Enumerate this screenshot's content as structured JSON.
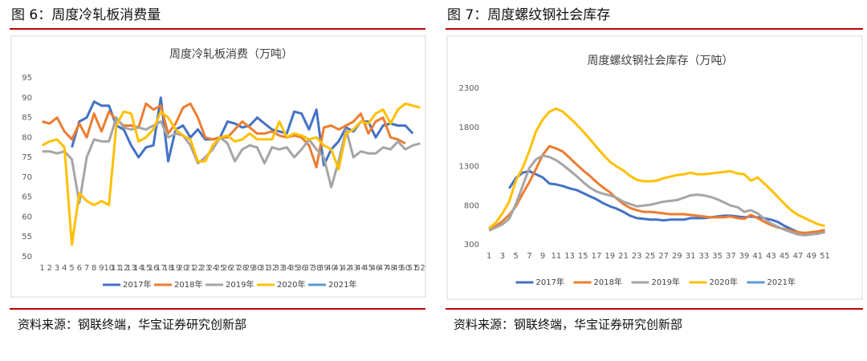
{
  "chart_data": [
    {
      "type": "line",
      "figure_title": "图 6：周度冷轧板消费量",
      "title": "周度冷轧板消费（万吨）",
      "source": "资料来源：钢联终端，华宝证券研究创新部",
      "categories": [
        "1",
        "2",
        "3",
        "4",
        "5",
        "6",
        "7",
        "8",
        "9",
        "10",
        "11",
        "12",
        "13",
        "14",
        "15",
        "16",
        "17",
        "18",
        "19",
        "20",
        "21",
        "22",
        "23",
        "24",
        "25",
        "26",
        "27",
        "28",
        "29",
        "30",
        "31",
        "32",
        "33",
        "34",
        "35",
        "36",
        "37",
        "38",
        "39",
        "40",
        "41",
        "42",
        "43",
        "44",
        "45",
        "46",
        "47",
        "48",
        "49",
        "50",
        "51",
        "52"
      ],
      "ylim": [
        50,
        95
      ],
      "yticks": [
        50,
        55,
        60,
        65,
        70,
        75,
        80,
        85,
        90,
        95
      ],
      "grid": false,
      "legend": "bottom",
      "series": [
        {
          "name": "2017年",
          "color": "#4472c4",
          "values": [
            null,
            null,
            null,
            null,
            77.5,
            84,
            85,
            89,
            88,
            88,
            83,
            82,
            78,
            75,
            77.5,
            78,
            90,
            74,
            82,
            83,
            80,
            82,
            79.5,
            79.5,
            80,
            84,
            83.5,
            82.5,
            83,
            85,
            83.5,
            82,
            81.5,
            81,
            86.5,
            86,
            82,
            87,
            73,
            77,
            79,
            82.5,
            81.5,
            84,
            84,
            80,
            83,
            83.5,
            83,
            83,
            81,
            null
          ]
        },
        {
          "name": "2018年",
          "color": "#ed7d31",
          "values": [
            84,
            83.5,
            85,
            81.5,
            79.5,
            83.5,
            80,
            86,
            81.5,
            86.5,
            84.5,
            83,
            83,
            82.5,
            88.5,
            87,
            88,
            81,
            83.5,
            87.5,
            88.5,
            85,
            80,
            79.5,
            80,
            80,
            82,
            84,
            82.5,
            81,
            81,
            81.5,
            80.5,
            80,
            80.5,
            80,
            78,
            72.5,
            82.5,
            83,
            82,
            83,
            84,
            86,
            81,
            84,
            85,
            80,
            79.5,
            78.5,
            null,
            null
          ]
        },
        {
          "name": "2019年",
          "color": "#a5a5a5",
          "values": [
            76.5,
            76.5,
            76,
            76.5,
            74.5,
            63.5,
            75,
            79.5,
            79,
            79,
            85,
            82.5,
            82,
            82.5,
            82,
            83,
            84,
            80,
            81,
            80.5,
            78,
            73.5,
            75,
            77,
            80,
            78.5,
            74,
            77,
            78,
            77.5,
            73.5,
            77.5,
            77,
            77.5,
            75,
            77,
            79.5,
            77,
            75,
            67.5,
            74,
            82,
            75,
            76.5,
            76,
            76,
            77.5,
            77,
            79,
            77,
            78,
            78.5
          ]
        },
        {
          "name": "2020年",
          "color": "#ffc000",
          "values": [
            78,
            79,
            79.5,
            77.5,
            53,
            66,
            64,
            63,
            64,
            63,
            83,
            86.5,
            86,
            79,
            80,
            82,
            86.5,
            85,
            82,
            80.5,
            79.5,
            74,
            74,
            78,
            80,
            80.5,
            79,
            79.5,
            81,
            79.5,
            79.5,
            79.5,
            84,
            80,
            81,
            80.5,
            79.5,
            80,
            78,
            77,
            72,
            81,
            82,
            84,
            83.5,
            86,
            87,
            83.5,
            87,
            88.5,
            88,
            87.5
          ]
        },
        {
          "name": "2021年",
          "color": "#5b9bd5",
          "values": [
            null,
            null,
            null,
            null,
            null,
            null,
            null,
            null,
            null,
            null,
            null,
            null,
            null,
            null,
            null,
            null,
            null,
            null,
            null,
            null,
            null,
            null,
            null,
            null,
            null,
            null,
            null,
            null,
            null,
            null,
            null,
            null,
            null,
            null,
            null,
            null,
            null,
            null,
            null,
            null,
            null,
            null,
            null,
            null,
            null,
            null,
            null,
            null,
            null,
            null,
            null,
            null
          ]
        }
      ]
    },
    {
      "type": "line",
      "figure_title": "图 7：周度螺纹钢社会库存",
      "title": "周度螺纹钢社会库存（万吨）",
      "source": "资料来源：钢联终端，华宝证券研究创新部",
      "categories": [
        "1",
        null,
        "3",
        null,
        "5",
        null,
        "7",
        null,
        "9",
        null,
        "11",
        null,
        "13",
        null,
        "15",
        null,
        "17",
        null,
        "19",
        null,
        "21",
        null,
        "23",
        null,
        "25",
        null,
        "27",
        null,
        "29",
        null,
        "31",
        null,
        "33",
        null,
        "35",
        null,
        "37",
        null,
        "39",
        null,
        "41",
        null,
        "43",
        null,
        "45",
        null,
        "47",
        null,
        "49",
        null,
        "51",
        null
      ],
      "ylim": [
        300,
        2300
      ],
      "yticks": [
        300,
        800,
        1300,
        1800,
        2300
      ],
      "grid": false,
      "legend": "bottom",
      "series": [
        {
          "name": "2017年",
          "color": "#4472c4",
          "values": [
            null,
            null,
            null,
            1020,
            1150,
            1220,
            1240,
            1200,
            1160,
            1080,
            1070,
            1050,
            1020,
            1000,
            960,
            920,
            880,
            830,
            790,
            760,
            720,
            670,
            640,
            630,
            620,
            620,
            610,
            620,
            620,
            620,
            640,
            640,
            640,
            650,
            660,
            670,
            670,
            660,
            650,
            660,
            650,
            640,
            620,
            590,
            540,
            500,
            460,
            440,
            440,
            450,
            470,
            null
          ]
        },
        {
          "name": "2018年",
          "color": "#ed7d31",
          "values": [
            500,
            540,
            600,
            680,
            790,
            950,
            1100,
            1270,
            1450,
            1560,
            1530,
            1490,
            1410,
            1330,
            1250,
            1180,
            1100,
            1030,
            970,
            890,
            820,
            770,
            740,
            720,
            720,
            710,
            700,
            690,
            690,
            690,
            680,
            670,
            660,
            650,
            650,
            650,
            660,
            640,
            630,
            680,
            640,
            590,
            550,
            520,
            500,
            480,
            460,
            450,
            460,
            470,
            490,
            null
          ]
        },
        {
          "name": "2019年",
          "color": "#a5a5a5",
          "values": [
            480,
            520,
            560,
            630,
            820,
            1050,
            1280,
            1390,
            1440,
            1420,
            1380,
            1320,
            1250,
            1180,
            1100,
            1030,
            980,
            950,
            930,
            900,
            850,
            820,
            790,
            800,
            810,
            830,
            850,
            860,
            870,
            900,
            930,
            940,
            930,
            910,
            880,
            840,
            800,
            780,
            720,
            740,
            700,
            630,
            570,
            530,
            490,
            460,
            430,
            420,
            430,
            440,
            460,
            null
          ]
        },
        {
          "name": "2020年",
          "color": "#ffc000",
          "values": [
            510,
            580,
            700,
            850,
            1120,
            1280,
            1500,
            1750,
            1900,
            2000,
            2040,
            2000,
            1920,
            1840,
            1750,
            1650,
            1550,
            1450,
            1360,
            1300,
            1250,
            1180,
            1130,
            1110,
            1110,
            1120,
            1150,
            1170,
            1190,
            1200,
            1220,
            1200,
            1200,
            1210,
            1220,
            1230,
            1240,
            1210,
            1200,
            1120,
            1160,
            1080,
            1000,
            910,
            820,
            740,
            680,
            640,
            600,
            560,
            540,
            null
          ]
        },
        {
          "name": "2021年",
          "color": "#5b9bd5",
          "values": [
            null,
            null,
            null,
            null,
            null,
            null,
            null,
            null,
            null,
            null,
            null,
            null,
            null,
            null,
            null,
            null,
            null,
            null,
            null,
            null,
            null,
            null,
            null,
            null,
            null,
            null,
            null,
            null,
            null,
            null,
            null,
            null,
            null,
            null,
            null,
            null,
            null,
            null,
            null,
            null,
            null,
            null,
            null,
            null,
            null,
            null,
            null,
            null,
            null,
            null,
            null,
            null
          ]
        }
      ]
    }
  ]
}
